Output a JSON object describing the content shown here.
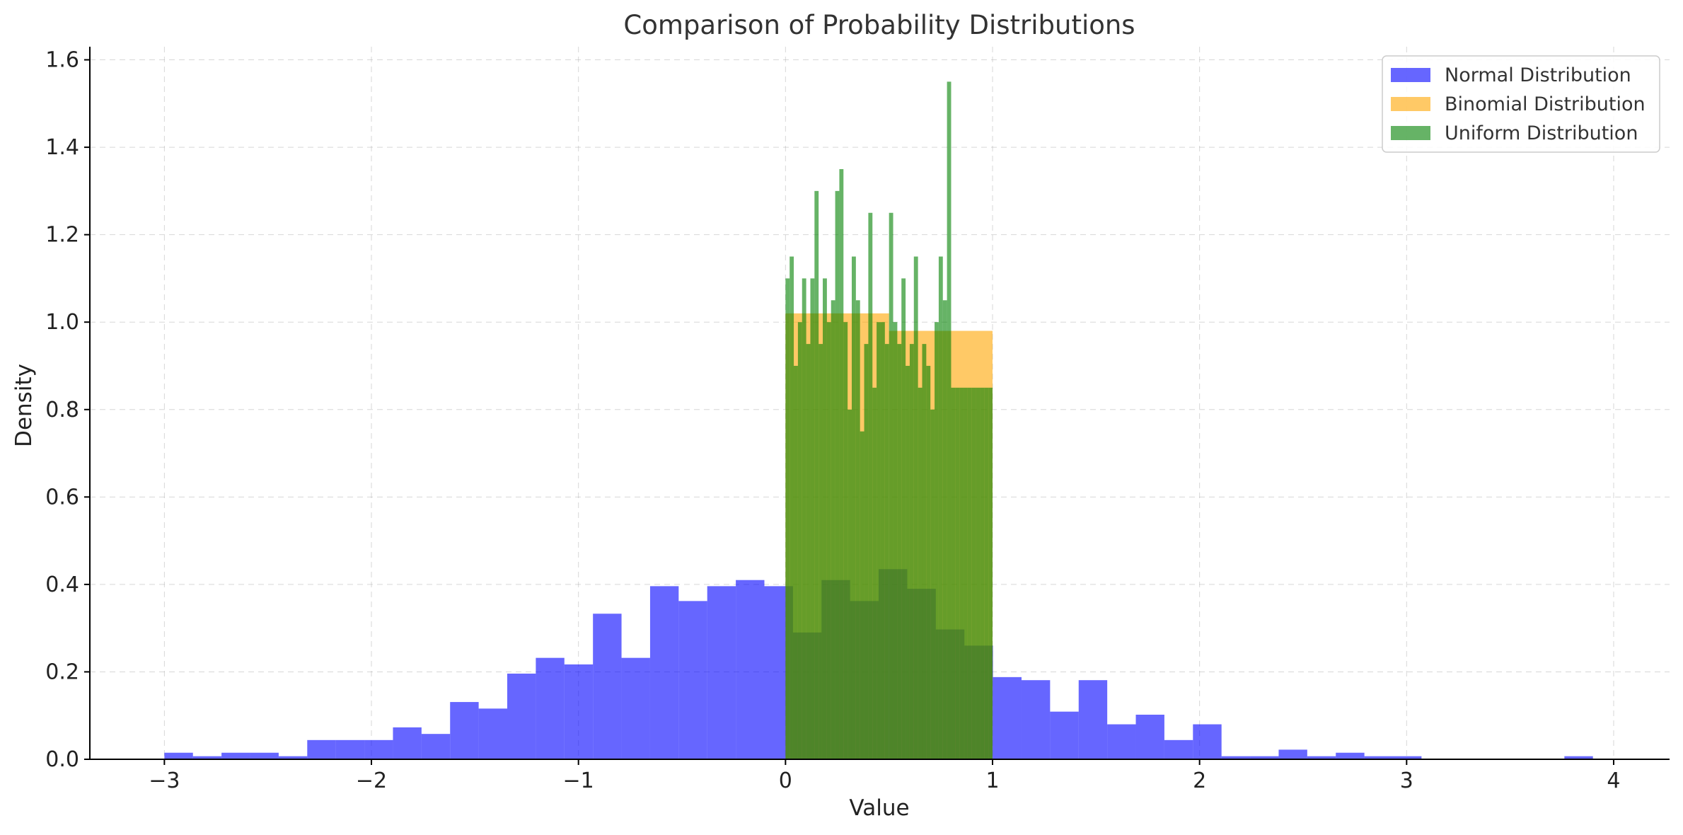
{
  "chart_data": {
    "type": "bar",
    "title": "Comparison of Probability Distributions",
    "xlabel": "Value",
    "ylabel": "Density",
    "xlim": [
      -3.36,
      4.27
    ],
    "ylim": [
      0,
      1.63
    ],
    "xticks": [
      -3,
      -2,
      -1,
      0,
      1,
      2,
      3,
      4
    ],
    "xtick_labels": [
      "−3",
      "−2",
      "−1",
      "0",
      "1",
      "2",
      "3",
      "4"
    ],
    "yticks": [
      0.0,
      0.2,
      0.4,
      0.6,
      0.8,
      1.0,
      1.2,
      1.4,
      1.6
    ],
    "ytick_labels": [
      "0.0",
      "0.2",
      "0.4",
      "0.6",
      "0.8",
      "1.0",
      "1.2",
      "1.4",
      "1.6"
    ],
    "grid": true,
    "legend_position": "top-right",
    "series": [
      {
        "name": "Normal Distribution",
        "color": "#0000ff",
        "opacity": 0.6,
        "bin_edges": [
          -3.0,
          -2.862,
          -2.724,
          -2.586,
          -2.448,
          -2.31,
          -2.172,
          -2.034,
          -1.896,
          -1.758,
          -1.62,
          -1.482,
          -1.344,
          -1.206,
          -1.068,
          -0.93,
          -0.792,
          -0.654,
          -0.516,
          -0.378,
          -0.24,
          -0.102,
          0.036,
          0.174,
          0.312,
          0.45,
          0.588,
          0.726,
          0.864,
          1.002,
          1.14,
          1.278,
          1.416,
          1.554,
          1.692,
          1.83,
          1.968,
          2.106,
          2.244,
          2.382,
          2.52,
          2.658,
          2.796,
          2.934,
          3.072,
          3.21,
          3.348,
          3.486,
          3.624,
          3.762,
          3.9,
          4.038
        ],
        "values": [
          0.015,
          0.007,
          0.015,
          0.015,
          0.007,
          0.044,
          0.044,
          0.044,
          0.073,
          0.058,
          0.131,
          0.116,
          0.196,
          0.232,
          0.217,
          0.333,
          0.232,
          0.396,
          0.362,
          0.396,
          0.41,
          0.396,
          0.29,
          0.41,
          0.362,
          0.435,
          0.39,
          0.297,
          0.26,
          0.188,
          0.181,
          0.109,
          0.181,
          0.08,
          0.102,
          0.044,
          0.08,
          0.007,
          0.007,
          0.022,
          0.007,
          0.015,
          0.007,
          0.007,
          0.0,
          0.0,
          0.0,
          0.0,
          0.0,
          0.007,
          0.0
        ]
      },
      {
        "name": "Binomial Distribution",
        "color": "#ffa500",
        "opacity": 0.6,
        "bin_edges": [
          0.0,
          0.5,
          1.0
        ],
        "values": [
          1.02,
          0.98
        ]
      },
      {
        "name": "Uniform Distribution",
        "color": "#008000",
        "opacity": 0.6,
        "bin_edges": [
          0.0,
          0.02,
          0.04,
          0.06,
          0.08,
          0.1,
          0.12,
          0.14,
          0.16,
          0.18,
          0.2,
          0.22,
          0.24,
          0.26,
          0.28,
          0.3,
          0.32,
          0.34,
          0.36,
          0.38,
          0.4,
          0.42,
          0.44,
          0.46,
          0.48,
          0.5,
          0.52,
          0.54,
          0.56,
          0.58,
          0.6,
          0.62,
          0.64,
          0.66,
          0.68,
          0.7,
          0.72,
          0.74,
          0.76,
          0.78,
          0.8,
          0.82,
          0.84,
          0.86,
          0.88,
          0.9,
          0.92,
          0.94,
          0.96,
          0.98,
          1.0
        ],
        "values": [
          1.1,
          1.15,
          0.9,
          1.0,
          1.1,
          0.95,
          1.1,
          1.3,
          0.95,
          1.1,
          1.0,
          1.05,
          1.3,
          1.35,
          1.0,
          0.8,
          1.15,
          1.05,
          0.75,
          0.95,
          1.25,
          0.85,
          1.0,
          1.0,
          0.95,
          1.25,
          1.0,
          0.95,
          1.1,
          0.9,
          0.95,
          1.15,
          0.85,
          0.95,
          0.9,
          0.8,
          1.0,
          1.15,
          1.05,
          1.55,
          0.85,
          0.85,
          0.85,
          0.85,
          0.85,
          0.85,
          0.85,
          0.85,
          0.85,
          0.85
        ]
      }
    ]
  }
}
